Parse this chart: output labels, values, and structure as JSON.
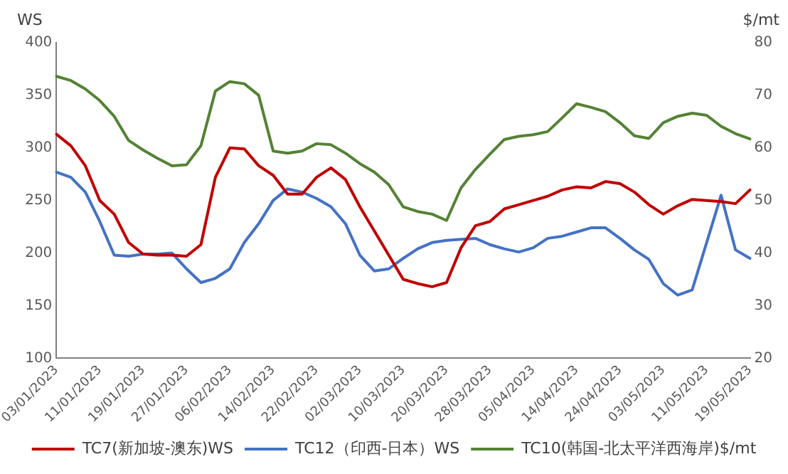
{
  "chart_data": {
    "type": "line",
    "ylabel": "WS",
    "y2label": "$/mt",
    "categories": [
      "03/01/2023",
      null,
      null,
      "11/01/2023",
      null,
      null,
      "19/01/2023",
      null,
      null,
      "27/01/2023",
      null,
      null,
      "06/02/2023",
      null,
      null,
      "14/02/2023",
      null,
      null,
      "22/02/2023",
      null,
      null,
      "02/03/2023",
      null,
      null,
      "10/03/2023",
      null,
      null,
      "20/03/2023",
      null,
      null,
      "28/03/2023",
      null,
      null,
      "05/04/2023",
      null,
      null,
      "14/04/2023",
      null,
      null,
      "24/04/2023",
      null,
      null,
      "03/05/2023",
      null,
      null,
      "11/05/2023",
      null,
      null,
      "19/05/2023"
    ],
    "series": [
      {
        "name": "TC7(新加坡-澳东)WS",
        "color": "#c00000",
        "values": [
          313,
          302,
          283,
          250,
          237,
          210,
          199,
          198,
          198,
          197,
          208,
          272,
          300,
          299,
          283,
          274,
          256,
          256,
          272,
          281,
          270,
          244,
          221,
          198,
          175,
          171,
          168,
          172,
          205,
          226,
          230,
          242,
          246,
          250,
          254,
          260,
          263,
          262,
          268,
          266,
          258,
          246,
          237,
          245,
          251,
          250,
          249,
          247,
          260
        ]
      },
      {
        "name": "TC12（印西-日本）WS",
        "color": "#4472c4",
        "values": [
          277,
          272,
          258,
          230,
          198,
          197,
          199,
          199,
          200,
          185,
          172,
          176,
          185,
          210,
          228,
          250,
          261,
          258,
          252,
          244,
          228,
          198,
          183,
          185,
          195,
          204,
          210,
          212,
          213,
          214,
          208,
          204,
          201,
          205,
          214,
          216,
          220,
          224,
          224,
          214,
          203,
          194,
          171,
          160,
          165,
          210,
          255,
          203,
          195
        ]
      },
      {
        "name": "TC10(韩国-北太平洋西海岸)$/mt",
        "color": "#548235",
        "axis": "y2",
        "values": [
          73.6,
          72.8,
          71.2,
          69,
          66,
          61.4,
          59.6,
          58,
          56.6,
          56.8,
          60.4,
          70.8,
          72.6,
          72.2,
          70,
          59.4,
          59,
          59.4,
          60.8,
          60.6,
          59,
          57,
          55.4,
          53,
          48.8,
          47.9,
          47.4,
          46.2,
          52.4,
          55.9,
          58.8,
          61.6,
          62.2,
          62.5,
          63.1,
          65.7,
          68.4,
          67.7,
          66.9,
          64.8,
          62.3,
          61.8,
          64.8,
          66,
          66.6,
          66.2,
          64.1,
          62.7,
          61.7
        ]
      }
    ],
    "ylim": [
      100,
      400
    ],
    "yticks": [
      100,
      150,
      200,
      250,
      300,
      350,
      400
    ],
    "y2lim": [
      20,
      80
    ],
    "y2ticks": [
      20,
      30,
      40,
      50,
      60,
      70,
      80
    ],
    "grid": false,
    "legend": "bottom",
    "marker": "none",
    "line_style": "solid"
  }
}
